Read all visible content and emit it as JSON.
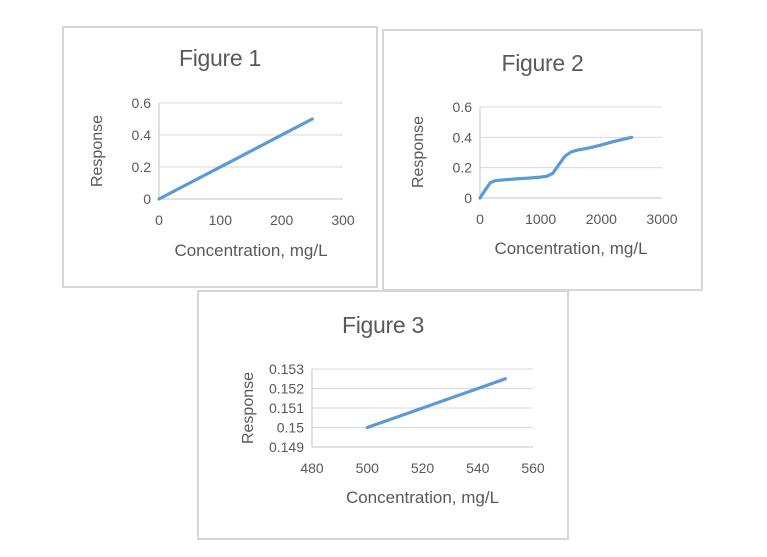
{
  "colors": {
    "line": "#5B9BD5",
    "grid": "#d9d9d9",
    "axis": "#c6c6c6",
    "text": "#595959",
    "box_border": "#d6d6d6",
    "background": "#ffffff"
  },
  "chart_data": [
    {
      "type": "line",
      "title": "Figure 1",
      "xlabel": "Concentration, mg/L",
      "ylabel": "Response",
      "x": [
        0,
        250
      ],
      "y": [
        0,
        0.5
      ],
      "xlim": [
        0,
        300
      ],
      "ylim": [
        0,
        0.6
      ],
      "x_tick_values": [
        0,
        100,
        200,
        300
      ],
      "x_ticks": [
        "0",
        "100",
        "200",
        "300"
      ],
      "y_tick_values": [
        0,
        0.2,
        0.4,
        0.6
      ],
      "y_ticks": [
        "0",
        "0.2",
        "0.4",
        "0.6"
      ],
      "grid": true,
      "legend": false
    },
    {
      "type": "line",
      "title": "Figure 2",
      "xlabel": "Concentration, mg/L",
      "ylabel": "Response",
      "x": [
        0,
        80,
        170,
        250,
        400,
        600,
        800,
        1000,
        1100,
        1200,
        1300,
        1400,
        1500,
        1600,
        1800,
        2000,
        2200,
        2500
      ],
      "y": [
        0,
        0.05,
        0.1,
        0.114,
        0.12,
        0.126,
        0.131,
        0.138,
        0.143,
        0.163,
        0.22,
        0.275,
        0.303,
        0.315,
        0.33,
        0.35,
        0.372,
        0.4
      ],
      "xlim": [
        0,
        3000
      ],
      "ylim": [
        0,
        0.6
      ],
      "x_tick_values": [
        0,
        1000,
        2000,
        3000
      ],
      "x_ticks": [
        "0",
        "1000",
        "2000",
        "3000"
      ],
      "y_tick_values": [
        0,
        0.2,
        0.4,
        0.6
      ],
      "y_ticks": [
        "0",
        "0.2",
        "0.4",
        "0.6"
      ],
      "grid": true,
      "legend": false
    },
    {
      "type": "line",
      "title": "Figure 3",
      "xlabel": "Concentration, mg/L",
      "ylabel": "Response",
      "x": [
        500,
        550
      ],
      "y": [
        0.15,
        0.1525
      ],
      "xlim": [
        480,
        560
      ],
      "ylim": [
        0.149,
        0.153
      ],
      "x_tick_values": [
        480,
        500,
        520,
        540,
        560
      ],
      "x_ticks": [
        "480",
        "500",
        "520",
        "540",
        "560"
      ],
      "y_tick_values": [
        0.149,
        0.15,
        0.151,
        0.152,
        0.153
      ],
      "y_ticks": [
        "0.149",
        "0.15",
        "0.151",
        "0.152",
        "0.153"
      ],
      "grid": true,
      "legend": false
    }
  ]
}
